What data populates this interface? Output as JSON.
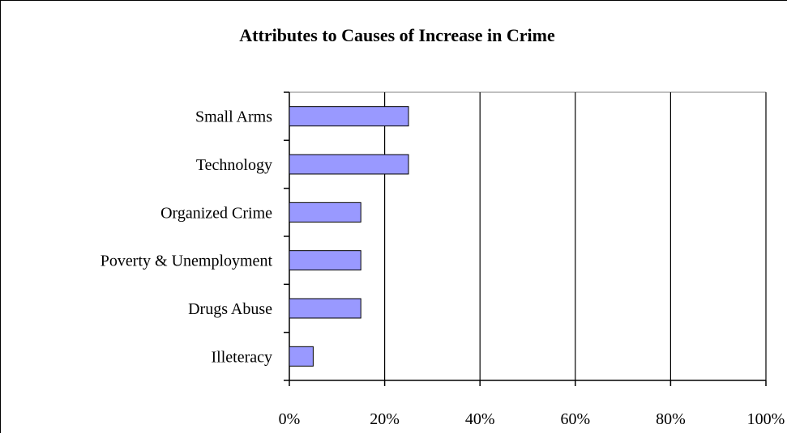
{
  "chart_data": {
    "type": "bar",
    "orientation": "horizontal",
    "title": "Attributes to Causes of Increase in Crime",
    "xlabel": "",
    "ylabel": "",
    "categories": [
      "Small Arms",
      "Technology",
      "Organized Crime",
      "Poverty & Unemployment",
      "Drugs Abuse",
      "Illeteracy"
    ],
    "values": [
      25,
      25,
      15,
      15,
      15,
      5
    ],
    "xlim": [
      0,
      100
    ],
    "x_ticks": [
      "0%",
      "20%",
      "40%",
      "60%",
      "80%",
      "100%"
    ],
    "grid": "vertical major gridlines",
    "colors": {
      "bar_fill": "#9999ff",
      "bar_stroke": "#000000",
      "grid": "#000000"
    }
  }
}
